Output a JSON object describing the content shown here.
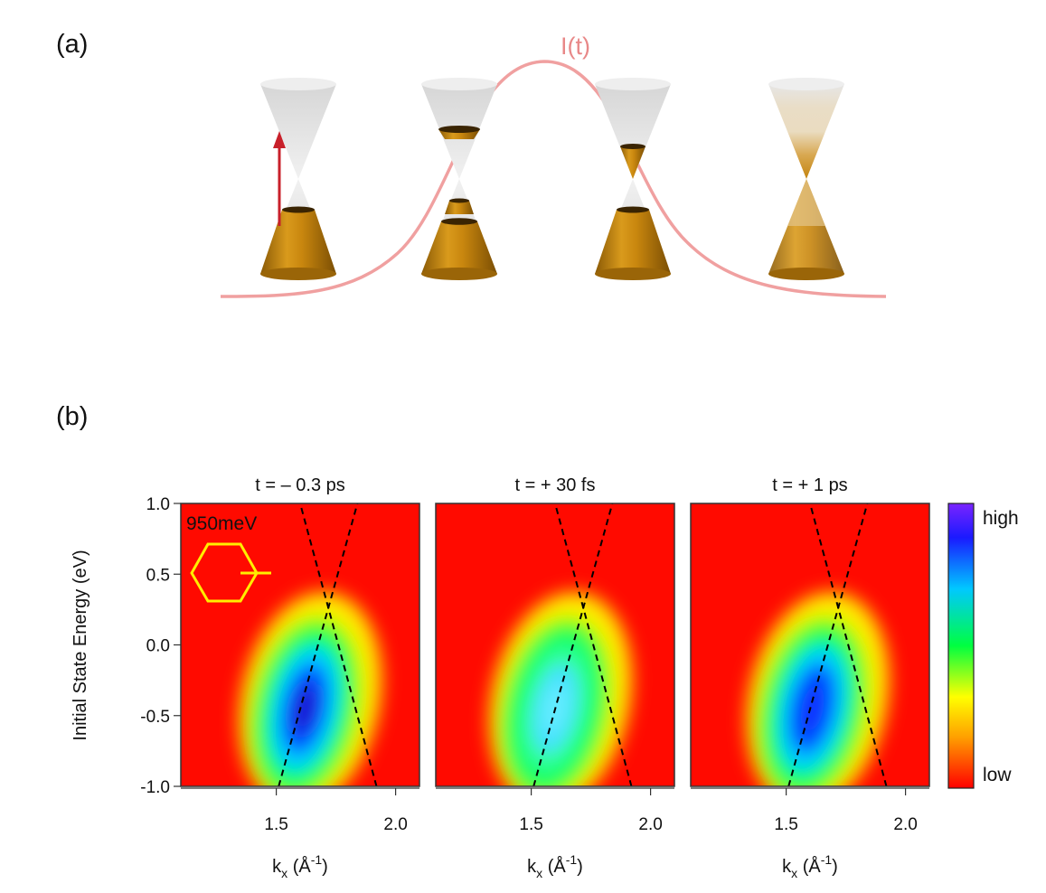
{
  "panel_a": {
    "label": "(a)",
    "pulse_label": "I(t)",
    "colors": {
      "pulse": "#f0a0a0",
      "pulse_text": "#e88888",
      "arrow": "#c8202a",
      "band_fill": "#c8860e",
      "cone_gray": "#d8d8d8"
    }
  },
  "panel_b": {
    "label": "(b)",
    "ylabel": "Initial State Energy (eV)",
    "xlabel_base": "k",
    "xlabel_sub": "x",
    "xlabel_unit_open": " (Å",
    "xlabel_sup": "-1",
    "xlabel_unit_close": ")",
    "inset_label": "950meV",
    "colorbar": {
      "high": "high",
      "low": "low"
    }
  },
  "chart_data": [
    {
      "type": "heatmap",
      "title": "t = – 0.3 ps",
      "xlim": [
        1.1,
        2.1
      ],
      "ylim": [
        -1.0,
        1.0
      ],
      "xticks": [
        "1.5",
        "2.0"
      ],
      "xtick_values": [
        1.5,
        2.0
      ],
      "yticks": [
        "1.0",
        "0.5",
        "0.0",
        "-0.5",
        "-1.0"
      ],
      "ytick_values": [
        1.0,
        0.5,
        0.0,
        -0.5,
        -1.0
      ],
      "peak": {
        "k": 1.62,
        "E": -0.45,
        "intensity": 1.0
      },
      "dashed_lines": [
        {
          "k_bottom": 1.51,
          "k_top": 1.84
        },
        {
          "k_bottom": 1.92,
          "k_top": 1.6
        }
      ]
    },
    {
      "type": "heatmap",
      "title": "t = + 30 fs",
      "xlim": [
        1.1,
        2.1
      ],
      "ylim": [
        -1.0,
        1.0
      ],
      "xticks": [
        "1.5",
        "2.0"
      ],
      "xtick_values": [
        1.5,
        2.0
      ],
      "peak": {
        "k": 1.6,
        "E": -0.45,
        "intensity": 0.62
      },
      "dashed_lines": [
        {
          "k_bottom": 1.51,
          "k_top": 1.84
        },
        {
          "k_bottom": 1.92,
          "k_top": 1.6
        }
      ]
    },
    {
      "type": "heatmap",
      "title": "t = + 1 ps",
      "xlim": [
        1.1,
        2.1
      ],
      "ylim": [
        -1.0,
        1.0
      ],
      "xticks": [
        "1.5",
        "2.0"
      ],
      "xtick_values": [
        1.5,
        2.0
      ],
      "peak": {
        "k": 1.61,
        "E": -0.45,
        "intensity": 0.88
      },
      "dashed_lines": [
        {
          "k_bottom": 1.51,
          "k_top": 1.84
        },
        {
          "k_bottom": 1.92,
          "k_top": 1.6
        }
      ]
    }
  ]
}
